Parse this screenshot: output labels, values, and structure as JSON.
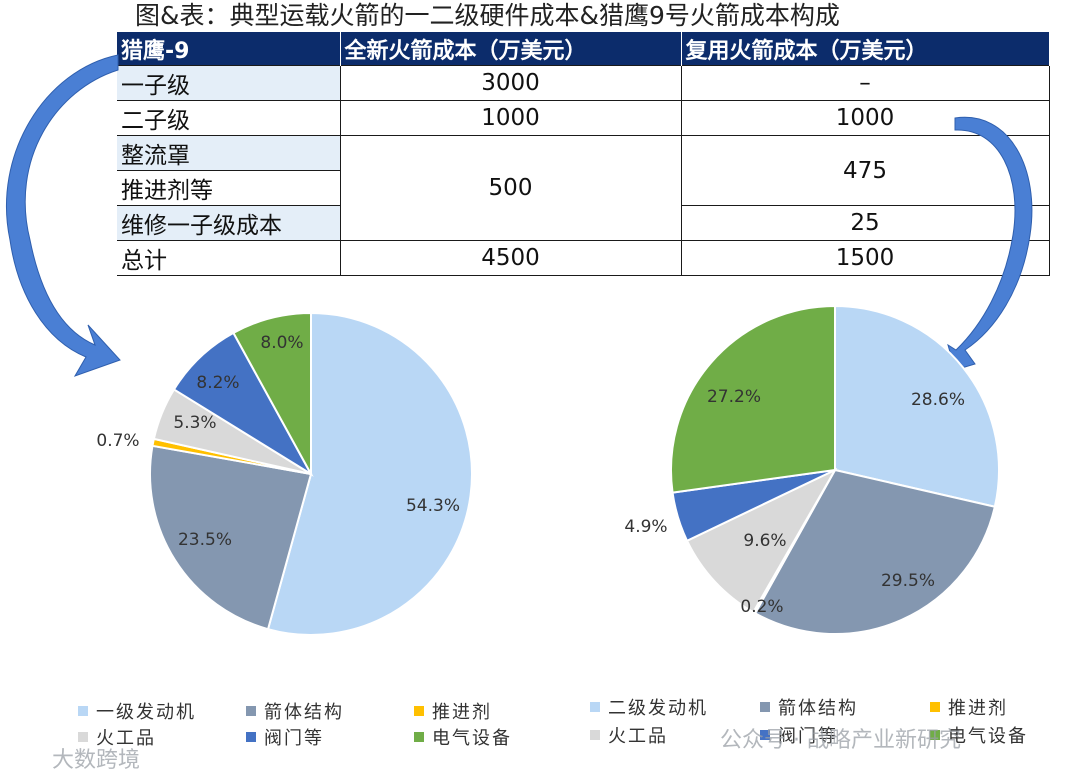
{
  "title": "图&表：典型运载火箭的一二级硬件成本&猎鹰9号火箭成本构成",
  "table": {
    "headers": [
      "猎鹰-9",
      "全新火箭成本（万美元）",
      "复用火箭成本（万美元）"
    ],
    "rows": [
      {
        "label": "一子级",
        "new": "3000",
        "reuse": "–"
      },
      {
        "label": "二子级",
        "new": "1000",
        "reuse": "1000"
      },
      {
        "label": "整流罩"
      },
      {
        "label": "推进剂等"
      },
      {
        "label": "维修一子级成本"
      },
      {
        "label": "总计",
        "new": "4500",
        "reuse": "1500"
      }
    ],
    "merged_new_500": "500",
    "merged_reuse_475": "475",
    "maintenance_reuse": "25"
  },
  "colors": {
    "engine": "#b9d7f5",
    "body": "#8497b0",
    "propellant": "#ffc000",
    "pyro": "#d9d9d9",
    "valves": "#4472c4",
    "electrical": "#70ad47",
    "arrow": "#4a7fd4",
    "header": "#0c2c6b"
  },
  "chart_data": [
    {
      "type": "pie",
      "categories": [
        "一级发动机",
        "箭体结构",
        "推进剂",
        "火工品",
        "阀门等",
        "电气设备"
      ],
      "values": [
        54.3,
        23.5,
        0.7,
        5.3,
        8.2,
        8.0
      ],
      "labels": [
        "54.3%",
        "23.5%",
        "0.7%",
        "5.3%",
        "8.2%",
        "8.0%"
      ],
      "legend": [
        "一级发动机",
        "箭体结构",
        "推进剂",
        "火工品",
        "阀门等",
        "电气设备"
      ]
    },
    {
      "type": "pie",
      "categories": [
        "二级发动机",
        "箭体结构",
        "推进剂",
        "火工品",
        "阀门等",
        "电气设备"
      ],
      "values": [
        28.6,
        29.5,
        0.2,
        9.6,
        4.9,
        27.2
      ],
      "labels": [
        "28.6%",
        "29.5%",
        "0.2%",
        "9.6%",
        "4.9%",
        "27.2%"
      ],
      "legend": [
        "二级发动机",
        "箭体结构",
        "推进剂",
        "火工品",
        "阀门等",
        "电气设备"
      ]
    }
  ],
  "watermarks": {
    "bottom_left": "大数跨境",
    "bottom_right": "公众号 · 战略产业新研究"
  }
}
